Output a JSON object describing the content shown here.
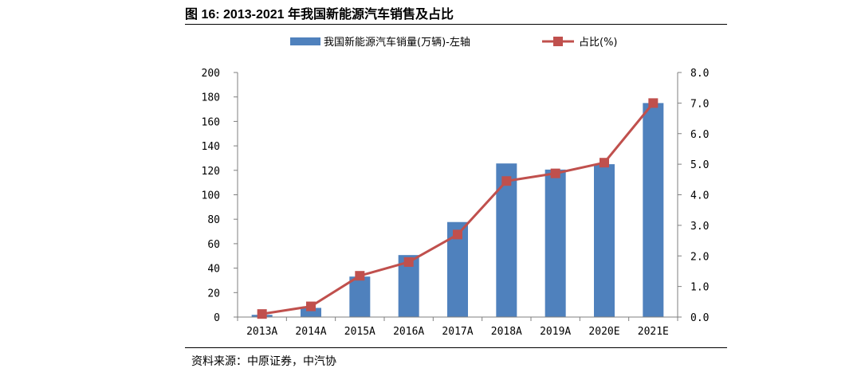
{
  "figure": {
    "title": "图 16:  2013-2021 年我国新能源汽车销售及占比",
    "source": "资料来源：中原证券，中汽协"
  },
  "colors": {
    "bar": "#4f81bd",
    "line": "#c0504d",
    "axis": "#7f7f7f"
  },
  "chart_data": {
    "type": "bar+line",
    "title": "2013-2021 年我国新能源汽车销售及占比",
    "categories": [
      "2013A",
      "2014A",
      "2015A",
      "2016A",
      "2017A",
      "2018A",
      "2019A",
      "2020E",
      "2021E"
    ],
    "series": [
      {
        "name": "我国新能源汽车销量(万辆)-左轴",
        "type": "bar",
        "axis": "left",
        "values": [
          1.8,
          7.5,
          33.1,
          50.7,
          77.7,
          125.6,
          120.6,
          125,
          175
        ]
      },
      {
        "name": "占比(%)",
        "type": "line",
        "axis": "right",
        "values": [
          0.1,
          0.35,
          1.35,
          1.8,
          2.7,
          4.45,
          4.7,
          5.05,
          7.0
        ]
      }
    ],
    "left_axis": {
      "min": 0,
      "max": 200,
      "step": 20,
      "ticks": [
        "0",
        "20",
        "40",
        "60",
        "80",
        "100",
        "120",
        "140",
        "160",
        "180",
        "200"
      ]
    },
    "right_axis": {
      "min": 0,
      "max": 8,
      "step": 1,
      "ticks": [
        "0.0",
        "1.0",
        "2.0",
        "3.0",
        "4.0",
        "5.0",
        "6.0",
        "7.0",
        "8.0"
      ]
    },
    "legend": [
      "我国新能源汽车销量(万辆)-左轴",
      "占比(%)"
    ],
    "legend_position": "top"
  }
}
